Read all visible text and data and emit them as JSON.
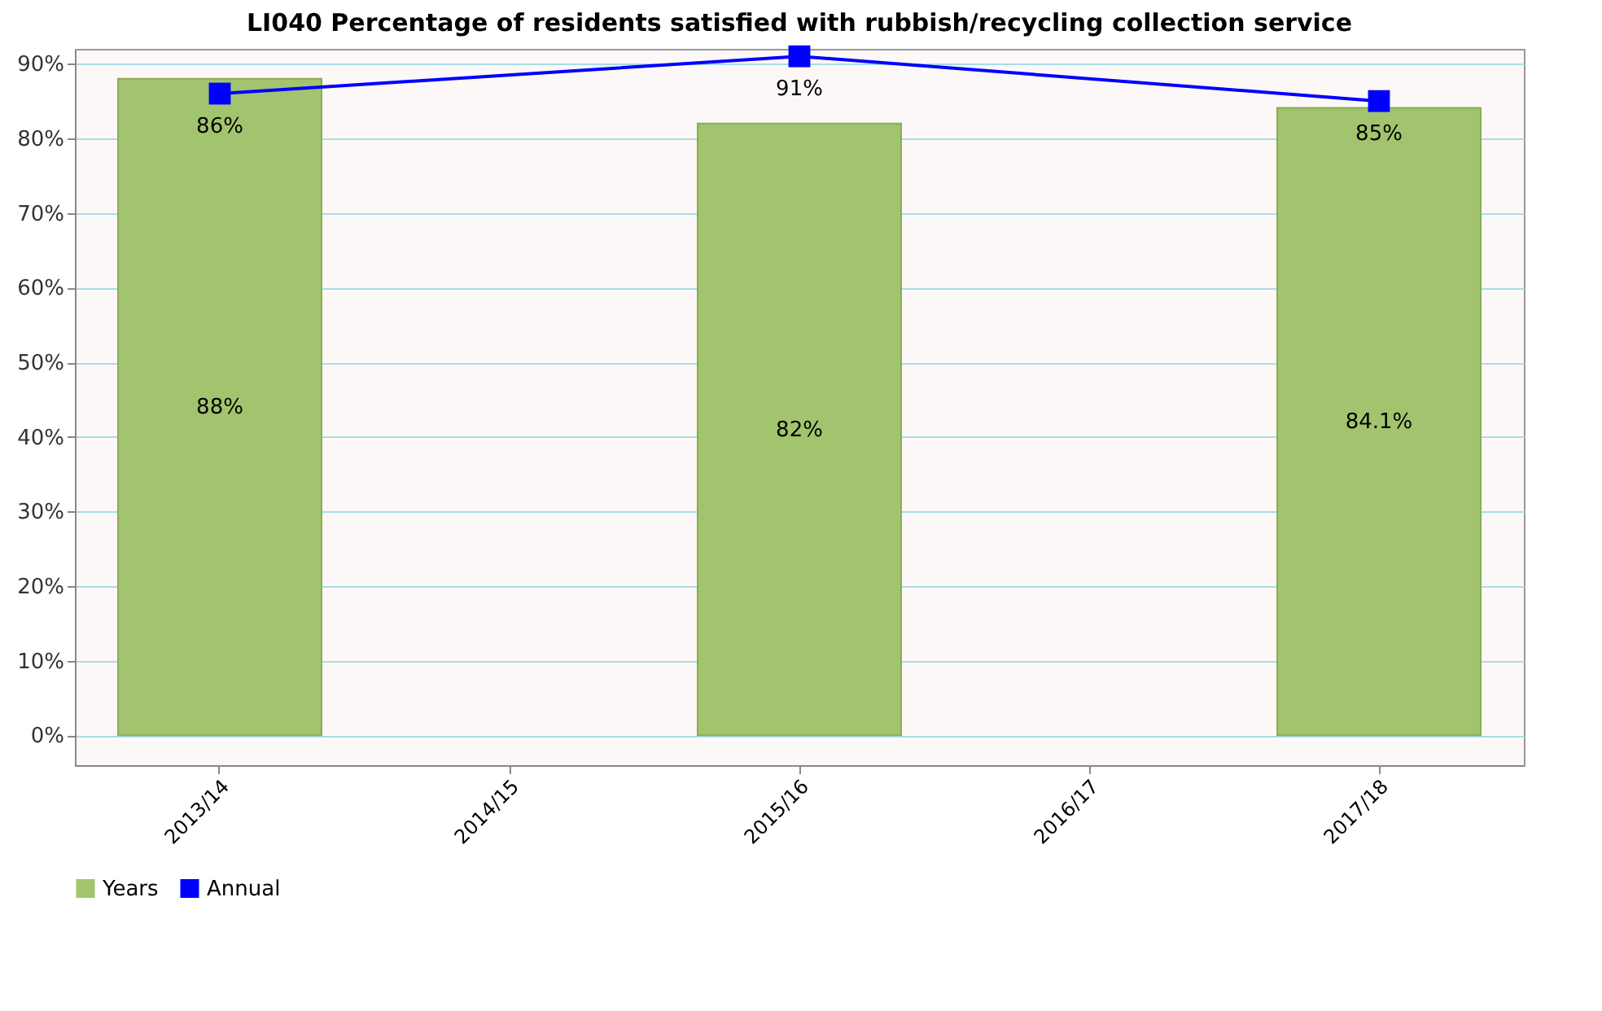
{
  "chart_data": {
    "type": "bar",
    "title": "LI040 Percentage of residents satisfied with rubbish/recycling collection service",
    "categories": [
      "2013/14",
      "2014/15",
      "2015/16",
      "2016/17",
      "2017/18"
    ],
    "series": [
      {
        "name": "Years",
        "color": "#a3c46e",
        "values": [
          88,
          null,
          82,
          null,
          84.1
        ],
        "value_labels": [
          "88%",
          null,
          "82%",
          null,
          "84.1%"
        ]
      },
      {
        "name": "Annual",
        "type": "line",
        "color": "#0000ff",
        "marker": "square",
        "values": [
          86,
          null,
          91,
          null,
          85
        ],
        "value_labels": [
          "86%",
          null,
          "91%",
          null,
          "85%"
        ]
      }
    ],
    "ylim": [
      -4,
      92
    ],
    "yticks": [
      {
        "value": 0,
        "label": "0%"
      },
      {
        "value": 10,
        "label": "10%"
      },
      {
        "value": 20,
        "label": "20%"
      },
      {
        "value": 30,
        "label": "30%"
      },
      {
        "value": 40,
        "label": "40%"
      },
      {
        "value": 50,
        "label": "50%"
      },
      {
        "value": 60,
        "label": "60%"
      },
      {
        "value": 70,
        "label": "70%"
      },
      {
        "value": 80,
        "label": "80%"
      },
      {
        "value": 90,
        "label": "90%"
      }
    ],
    "grid": "y",
    "legend": "bottom"
  }
}
